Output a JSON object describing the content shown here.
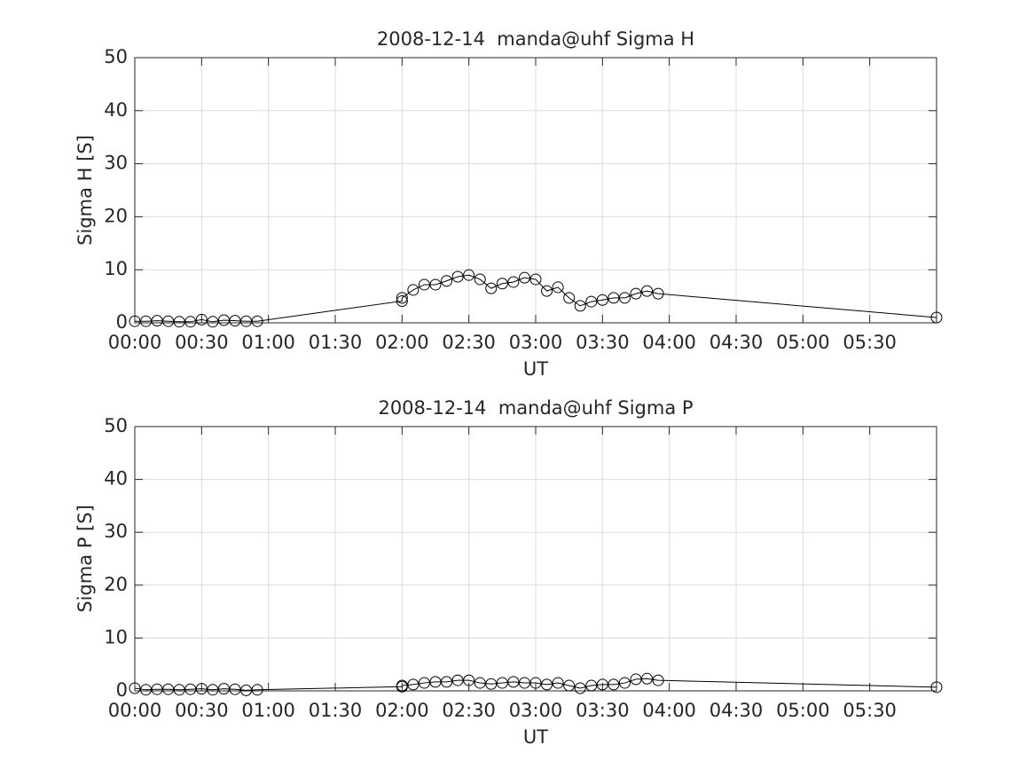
{
  "chart_data": [
    {
      "type": "line",
      "title": "2008-12-14  manda@uhf Sigma H",
      "xlabel": "UT",
      "ylabel": "Sigma H [S]",
      "x": [
        0,
        5,
        10,
        15,
        20,
        25,
        30,
        35,
        40,
        45,
        50,
        55,
        120,
        120,
        125,
        130,
        135,
        140,
        145,
        150,
        155,
        160,
        165,
        170,
        175,
        180,
        185,
        190,
        195,
        200,
        205,
        210,
        215,
        220,
        225,
        230,
        235,
        360
      ],
      "series": [
        {
          "color": "#000000",
          "marker": "circle",
          "values": [
            0.3,
            0.3,
            0.4,
            0.3,
            0.2,
            0.2,
            0.6,
            0.2,
            0.5,
            0.4,
            0.3,
            0.3,
            4.1,
            4.7,
            6.2,
            7.2,
            7.2,
            7.9,
            8.7,
            9.0,
            8.2,
            6.5,
            7.4,
            7.7,
            8.5,
            8.2,
            6.0,
            6.7,
            4.7,
            3.2,
            4.0,
            4.3,
            4.7,
            4.7,
            5.5,
            6.0,
            5.5,
            1.0
          ]
        }
      ],
      "xlim": [
        0,
        360
      ],
      "xticks": [
        {
          "value": 0,
          "label": "00:00"
        },
        {
          "value": 30,
          "label": "00:30"
        },
        {
          "value": 60,
          "label": "01:00"
        },
        {
          "value": 90,
          "label": "01:30"
        },
        {
          "value": 120,
          "label": "02:00"
        },
        {
          "value": 150,
          "label": "02:30"
        },
        {
          "value": 180,
          "label": "03:00"
        },
        {
          "value": 210,
          "label": "03:30"
        },
        {
          "value": 240,
          "label": "04:00"
        },
        {
          "value": 270,
          "label": "04:30"
        },
        {
          "value": 300,
          "label": "05:00"
        },
        {
          "value": 330,
          "label": "05:30"
        }
      ],
      "ylim": [
        0,
        50
      ],
      "yticks": [
        0,
        10,
        20,
        30,
        40,
        50
      ],
      "grid": true
    },
    {
      "type": "line",
      "title": "2008-12-14  manda@uhf Sigma P",
      "xlabel": "UT",
      "ylabel": "Sigma P [S]",
      "x": [
        0,
        5,
        10,
        15,
        20,
        25,
        30,
        35,
        40,
        45,
        50,
        55,
        120,
        120,
        125,
        130,
        135,
        140,
        145,
        150,
        155,
        160,
        165,
        170,
        175,
        180,
        185,
        190,
        195,
        200,
        205,
        210,
        215,
        220,
        225,
        230,
        235,
        360
      ],
      "series": [
        {
          "color": "#000000",
          "marker": "circle",
          "values": [
            0.5,
            0.2,
            0.3,
            0.3,
            0.2,
            0.3,
            0.4,
            0.2,
            0.4,
            0.3,
            0.1,
            0.2,
            0.8,
            1.0,
            1.2,
            1.5,
            1.7,
            1.7,
            2.0,
            2.0,
            1.5,
            1.3,
            1.5,
            1.7,
            1.5,
            1.5,
            1.2,
            1.5,
            1.0,
            0.5,
            1.0,
            1.2,
            1.2,
            1.5,
            2.2,
            2.3,
            2.0,
            0.7
          ]
        }
      ],
      "xlim": [
        0,
        360
      ],
      "xticks": [
        {
          "value": 0,
          "label": "00:00"
        },
        {
          "value": 30,
          "label": "00:30"
        },
        {
          "value": 60,
          "label": "01:00"
        },
        {
          "value": 90,
          "label": "01:30"
        },
        {
          "value": 120,
          "label": "02:00"
        },
        {
          "value": 150,
          "label": "02:30"
        },
        {
          "value": 180,
          "label": "03:00"
        },
        {
          "value": 210,
          "label": "03:30"
        },
        {
          "value": 240,
          "label": "04:00"
        },
        {
          "value": 270,
          "label": "04:30"
        },
        {
          "value": 300,
          "label": "05:00"
        },
        {
          "value": 330,
          "label": "05:30"
        }
      ],
      "ylim": [
        0,
        50
      ],
      "yticks": [
        0,
        10,
        20,
        30,
        40,
        50
      ],
      "grid": true
    }
  ]
}
